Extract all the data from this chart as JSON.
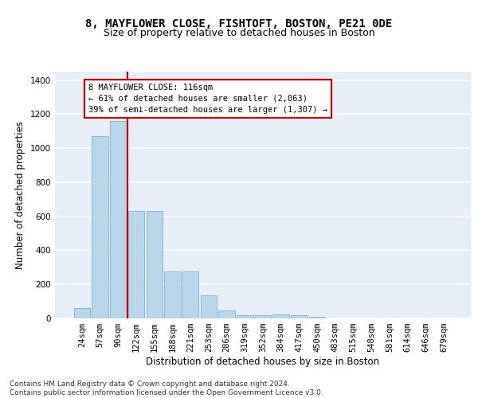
{
  "title1": "8, MAYFLOWER CLOSE, FISHTOFT, BOSTON, PE21 0DE",
  "title2": "Size of property relative to detached houses in Boston",
  "xlabel": "Distribution of detached houses by size in Boston",
  "ylabel": "Number of detached properties",
  "categories": [
    "24sqm",
    "57sqm",
    "90sqm",
    "122sqm",
    "155sqm",
    "188sqm",
    "221sqm",
    "253sqm",
    "286sqm",
    "319sqm",
    "352sqm",
    "384sqm",
    "417sqm",
    "450sqm",
    "483sqm",
    "515sqm",
    "548sqm",
    "581sqm",
    "614sqm",
    "646sqm",
    "679sqm"
  ],
  "values": [
    62,
    1070,
    1160,
    630,
    630,
    275,
    275,
    135,
    45,
    20,
    20,
    22,
    20,
    10,
    0,
    0,
    0,
    0,
    0,
    0,
    0
  ],
  "bar_color": "#bad4ea",
  "bar_edge_color": "#7aafd4",
  "vline_x": 2.5,
  "vline_color": "#cc0000",
  "annotation_text": "8 MAYFLOWER CLOSE: 116sqm\n← 61% of detached houses are smaller (2,063)\n39% of semi-detached houses are larger (1,307) →",
  "annotation_box_color": "#ffffff",
  "annotation_box_edge": "#cc0000",
  "ylim": [
    0,
    1450
  ],
  "yticks": [
    0,
    200,
    400,
    600,
    800,
    1000,
    1200,
    1400
  ],
  "bg_color": "#e8eef8",
  "grid_color": "#ffffff",
  "footer": "Contains HM Land Registry data © Crown copyright and database right 2024.\nContains public sector information licensed under the Open Government Licence v3.0.",
  "title_fontsize": 10,
  "subtitle_fontsize": 9,
  "axis_label_fontsize": 8.5,
  "tick_fontsize": 7.5,
  "annotation_fontsize": 7.5,
  "footer_fontsize": 6.5
}
